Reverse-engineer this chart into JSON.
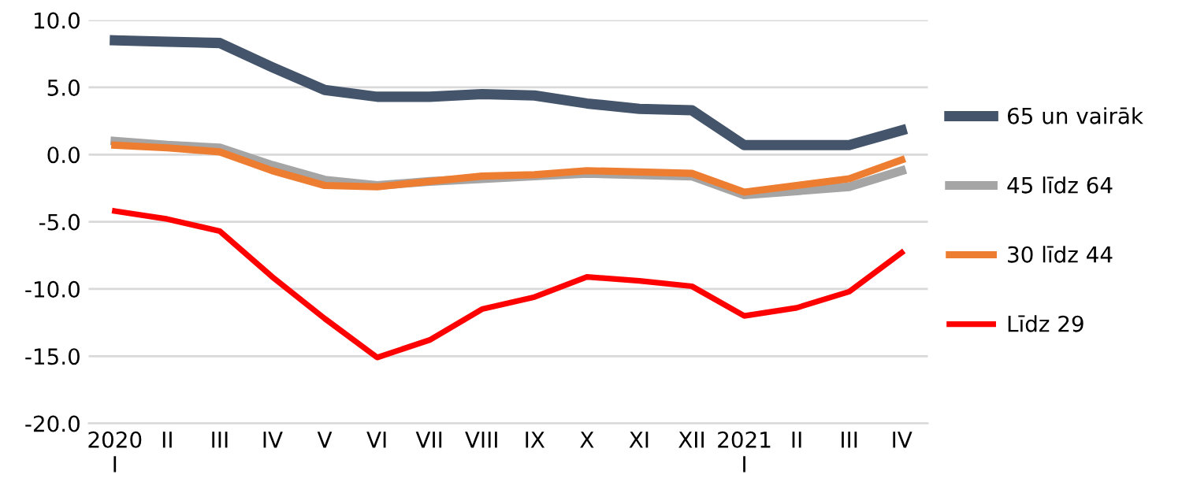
{
  "chart_data": {
    "type": "line",
    "categories": [
      "2020\nI",
      "II",
      "III",
      "IV",
      "V",
      "VI",
      "VII",
      "VIII",
      "IX",
      "X",
      "XI",
      "XII",
      "2021\nI",
      "II",
      "III",
      "IV"
    ],
    "series": [
      {
        "name": "65 un vairāk",
        "color": "#44546a",
        "values": [
          8.5,
          8.4,
          8.3,
          6.5,
          4.8,
          4.3,
          4.3,
          4.5,
          4.4,
          3.8,
          3.4,
          3.3,
          0.7,
          0.7,
          0.7,
          1.8
        ]
      },
      {
        "name": "45 līdz 64",
        "color": "#a5a5a5",
        "values": [
          1.0,
          0.7,
          0.5,
          -0.8,
          -1.9,
          -2.3,
          -2.0,
          -1.8,
          -1.6,
          -1.4,
          -1.5,
          -1.6,
          -3.0,
          -2.7,
          -2.4,
          -1.2
        ]
      },
      {
        "name": "30 līdz 44",
        "color": "#ed7d31",
        "values": [
          0.7,
          0.5,
          0.2,
          -1.2,
          -2.3,
          -2.4,
          -2.0,
          -1.6,
          -1.5,
          -1.2,
          -1.3,
          -1.4,
          -2.8,
          -2.3,
          -1.8,
          -0.4
        ]
      },
      {
        "name": "Līdz 29",
        "color": "#ff0000",
        "values": [
          -4.2,
          -4.8,
          -5.7,
          -9.1,
          -12.2,
          -15.1,
          -13.8,
          -11.5,
          -10.6,
          -9.1,
          -9.4,
          -9.8,
          -12.0,
          -11.4,
          -10.2,
          -7.3
        ]
      }
    ],
    "ylim": [
      -20,
      10
    ],
    "yticks": [
      {
        "value": -20,
        "label": "-20.0"
      },
      {
        "value": -15,
        "label": "-15.0"
      },
      {
        "value": -10,
        "label": "-10.0"
      },
      {
        "value": -5,
        "label": "-5.0"
      },
      {
        "value": 0,
        "label": "0.0"
      },
      {
        "value": 5,
        "label": "5.0"
      },
      {
        "value": 10,
        "label": "10.0"
      }
    ],
    "grid": "y",
    "legend": "right",
    "marker": "none",
    "line_style": "solid"
  }
}
